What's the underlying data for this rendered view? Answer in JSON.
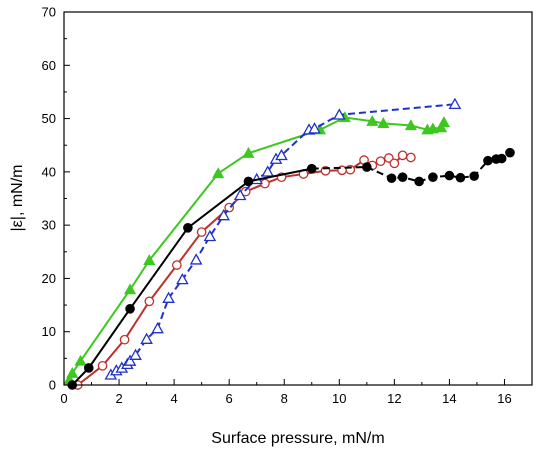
{
  "chart_data": {
    "type": "line",
    "xlabel": "Surface pressure, mN/m",
    "ylabel": "|ε|, mN/m",
    "xlim": [
      0,
      17
    ],
    "ylim": [
      0,
      70
    ],
    "x_ticks": [
      0,
      2,
      4,
      6,
      8,
      10,
      12,
      14,
      16
    ],
    "y_ticks": [
      0,
      10,
      20,
      30,
      40,
      50,
      60,
      70
    ],
    "x_tick_labels": [
      "0",
      "2",
      "4",
      "6",
      "8",
      "10",
      "12",
      "14",
      "16"
    ],
    "y_tick_labels": [
      "0",
      "10",
      "20",
      "30",
      "40",
      "50",
      "60",
      "70"
    ],
    "legend": "none",
    "grid": false,
    "series": [
      {
        "color": "#000000",
        "marker": "filled-circle",
        "line": "solid-then-dashed",
        "points": [
          [
            0.3,
            0
          ],
          [
            0.9,
            3.2
          ],
          [
            2.4,
            14.3
          ],
          [
            4.5,
            29.5
          ],
          [
            6.7,
            38.2
          ],
          [
            9.0,
            40.6
          ],
          [
            11.0,
            40.9
          ],
          [
            11.9,
            38.8
          ],
          [
            12.3,
            39.0
          ],
          [
            12.9,
            38.2
          ],
          [
            13.4,
            39.0
          ],
          [
            14.0,
            39.3
          ],
          [
            14.4,
            38.9
          ],
          [
            14.9,
            39.2
          ],
          [
            15.4,
            42.1
          ],
          [
            15.7,
            42.4
          ],
          [
            15.9,
            42.5
          ],
          [
            16.2,
            43.6
          ]
        ]
      },
      {
        "color": "#c0302a",
        "marker": "open-circle",
        "line": "solid",
        "points": [
          [
            0.5,
            0
          ],
          [
            1.4,
            3.6
          ],
          [
            2.2,
            8.5
          ],
          [
            3.1,
            15.7
          ],
          [
            4.1,
            22.5
          ],
          [
            5.0,
            28.7
          ],
          [
            6.0,
            33.3
          ],
          [
            6.6,
            36.3
          ],
          [
            7.3,
            37.8
          ],
          [
            7.9,
            39.0
          ],
          [
            8.7,
            39.6
          ],
          [
            9.5,
            40.2
          ],
          [
            10.1,
            40.3
          ],
          [
            10.4,
            40.4
          ],
          [
            10.9,
            42.2
          ],
          [
            11.2,
            41.2
          ],
          [
            11.5,
            42.0
          ],
          [
            11.8,
            42.6
          ],
          [
            12.0,
            41.6
          ],
          [
            12.3,
            43.1
          ],
          [
            12.6,
            42.7
          ]
        ]
      },
      {
        "color": "#1f32c8",
        "marker": "open-triangle",
        "line": "dashed",
        "points": [
          [
            1.7,
            1.9
          ],
          [
            1.9,
            2.7
          ],
          [
            2.1,
            3.2
          ],
          [
            2.3,
            3.9
          ],
          [
            2.4,
            4.5
          ],
          [
            2.6,
            5.6
          ],
          [
            3.0,
            8.6
          ],
          [
            3.4,
            10.6
          ],
          [
            3.8,
            16.3
          ],
          [
            4.3,
            19.8
          ],
          [
            4.8,
            23.5
          ],
          [
            5.3,
            27.9
          ],
          [
            5.8,
            31.8
          ],
          [
            6.4,
            35.6
          ],
          [
            7.0,
            38.6
          ],
          [
            7.4,
            40.0
          ],
          [
            7.7,
            42.4
          ],
          [
            7.9,
            43.1
          ],
          [
            8.9,
            47.9
          ],
          [
            9.1,
            48.1
          ],
          [
            10.0,
            50.7
          ],
          [
            14.2,
            52.7
          ]
        ]
      },
      {
        "color": "#3cc81e",
        "marker": "filled-triangle",
        "line": "solid",
        "points": [
          [
            0.2,
            1.0
          ],
          [
            0.3,
            2.2
          ],
          [
            0.6,
            4.5
          ],
          [
            2.4,
            17.9
          ],
          [
            3.1,
            23.4
          ],
          [
            5.6,
            39.7
          ],
          [
            6.7,
            43.5
          ],
          [
            9.3,
            47.9
          ],
          [
            10.2,
            50.2
          ],
          [
            11.2,
            49.5
          ],
          [
            11.6,
            49.1
          ],
          [
            12.6,
            48.7
          ],
          [
            13.2,
            47.9
          ],
          [
            13.4,
            48.1
          ],
          [
            13.7,
            48.3
          ],
          [
            13.8,
            49.3
          ]
        ]
      }
    ]
  }
}
